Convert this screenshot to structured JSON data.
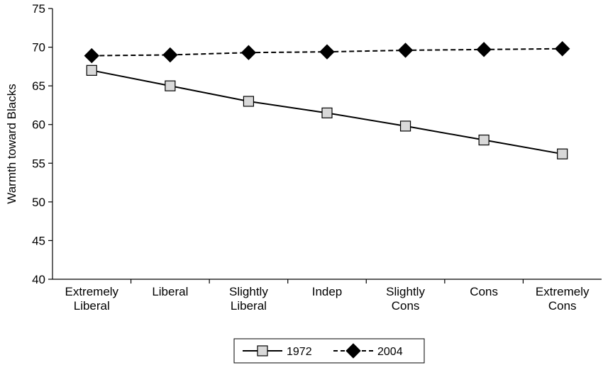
{
  "chart_data": {
    "type": "line",
    "categories": [
      [
        "Extremely",
        "Liberal"
      ],
      [
        "Liberal"
      ],
      [
        "Slightly",
        "Liberal"
      ],
      [
        "Indep"
      ],
      [
        "Slightly",
        "Cons"
      ],
      [
        "Cons"
      ],
      [
        "Extremely",
        "Cons"
      ]
    ],
    "series": [
      {
        "name": "1972",
        "values": [
          67.0,
          65.0,
          63.0,
          61.5,
          59.8,
          58.0,
          56.2
        ],
        "line_style": "solid",
        "marker": "square",
        "marker_color": "#d9d9d9",
        "line_color": "#000000"
      },
      {
        "name": "2004",
        "values": [
          68.9,
          69.0,
          69.3,
          69.4,
          69.6,
          69.7,
          69.8
        ],
        "line_style": "dashed",
        "marker": "diamond",
        "marker_color": "#000000",
        "line_color": "#000000"
      }
    ],
    "title": "",
    "xlabel": "",
    "ylabel": "Warmth toward Blacks",
    "ylim": [
      40,
      75
    ],
    "yticks": [
      40,
      45,
      50,
      55,
      60,
      65,
      70,
      75
    ],
    "grid": false,
    "legend_placement": "bottom-center"
  }
}
